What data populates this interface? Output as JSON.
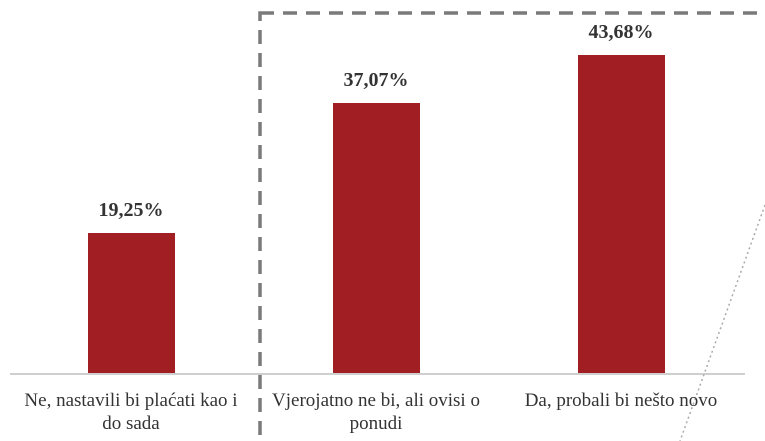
{
  "chart_data": {
    "type": "bar",
    "categories": [
      "Ne, nastavili bi plaćati kao i do sada",
      "Vjerojatno ne bi, ali ovisi o ponudi",
      "Da, probali bi nešto novo"
    ],
    "values": [
      19.25,
      37.07,
      43.68
    ],
    "value_labels": [
      "19,25%",
      "37,07%",
      "43,68%"
    ],
    "color": "#a11f23"
  }
}
